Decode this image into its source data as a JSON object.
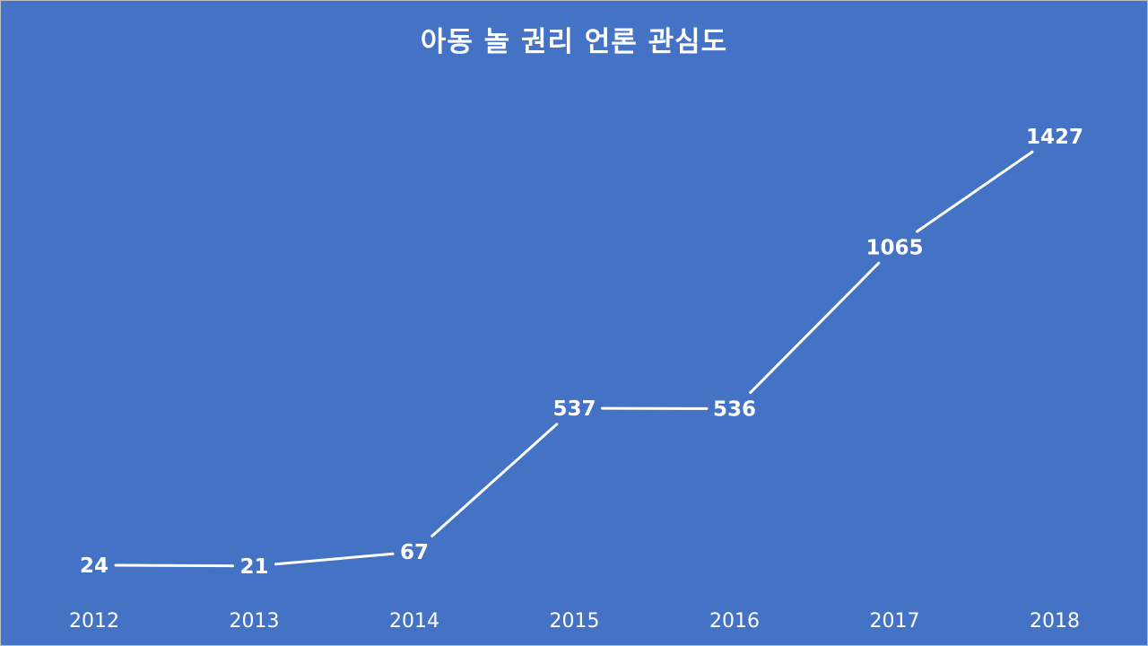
{
  "chart_data": {
    "type": "line",
    "title": "아동 놀 권리 언론 관심도",
    "categories": [
      "2012",
      "2013",
      "2014",
      "2015",
      "2016",
      "2017",
      "2018"
    ],
    "values": [
      24,
      21,
      67,
      537,
      536,
      1065,
      1427
    ],
    "xlabel": "",
    "ylabel": "",
    "ylim": [
      0,
      1500
    ],
    "grid": false,
    "legend": "none",
    "drop_lines": true,
    "data_labels": true
  },
  "colors": {
    "background": "#4472c4",
    "line": "#ffffff",
    "text": "#ffffff"
  }
}
